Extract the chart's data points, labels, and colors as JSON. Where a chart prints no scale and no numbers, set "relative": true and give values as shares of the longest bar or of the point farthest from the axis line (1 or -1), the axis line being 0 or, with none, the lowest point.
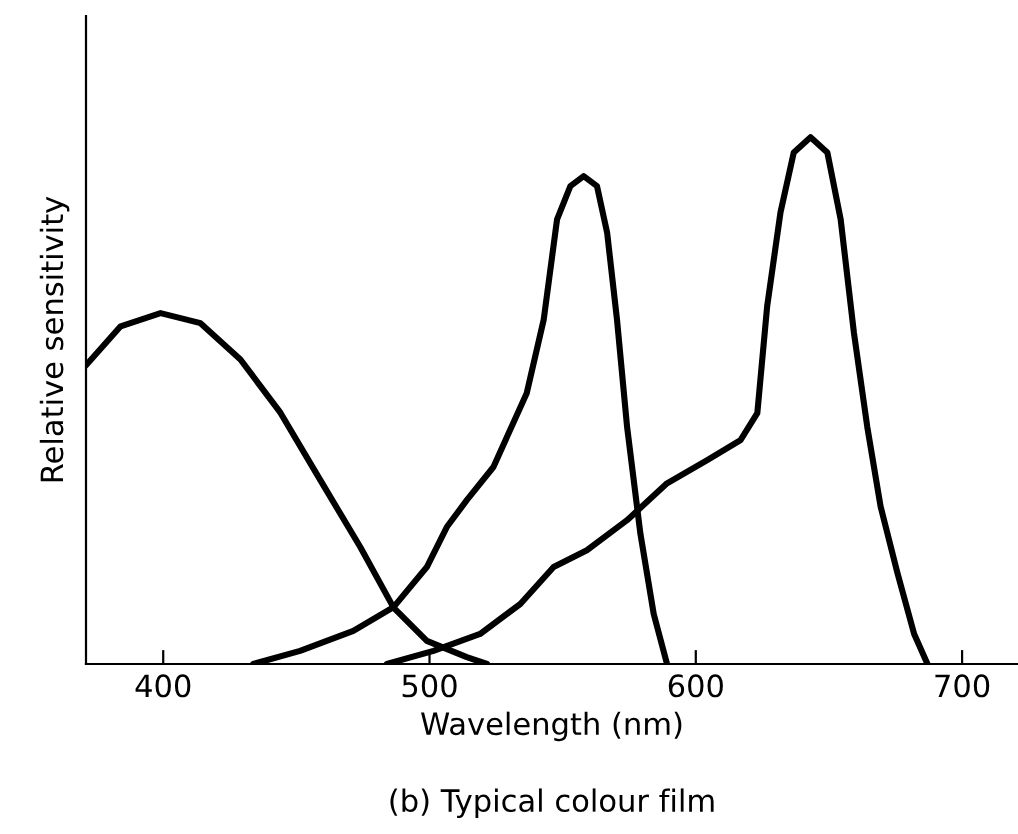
{
  "chart_data": {
    "type": "line",
    "title": "(b) Typical colour film",
    "xlabel": "Wavelength (nm)",
    "ylabel": "Relative sensitivity",
    "relative": true,
    "xlim": [
      371,
      721
    ],
    "xticks": [
      400,
      500,
      600,
      700
    ],
    "grid": false,
    "marker": "none",
    "line_style": "solid",
    "series": [
      {
        "color": "#000000",
        "x": [
          371,
          384,
          399,
          414,
          429,
          444,
          459,
          474,
          486.5,
          499,
          514,
          521.6
        ],
        "values": [
          0.567,
          0.641,
          0.666,
          0.647,
          0.578,
          0.477,
          0.349,
          0.222,
          0.107,
          0.044,
          0.013,
          0
        ]
      },
      {
        "color": "#000000",
        "x": [
          433.8,
          451.4,
          471.4,
          486.5,
          499,
          506.5,
          514,
          524,
          536.5,
          542.9,
          547.9,
          552.9,
          557.9,
          562.9,
          566.7,
          570.4,
          574.2,
          579.2,
          584.2,
          589.2
        ],
        "values": [
          0,
          0.025,
          0.063,
          0.108,
          0.184,
          0.26,
          0.311,
          0.374,
          0.514,
          0.654,
          0.844,
          0.907,
          0.926,
          0.907,
          0.819,
          0.654,
          0.45,
          0.247,
          0.095,
          0
        ]
      },
      {
        "color": "#000000",
        "x": [
          484.0,
          501.5,
          519.0,
          534.1,
          546.6,
          559.1,
          574.2,
          589.2,
          604.3,
          616.8,
          623.1,
          626.8,
          631.8,
          636.8,
          643.1,
          649.4,
          654.4,
          659.4,
          664.4,
          669.4,
          675.7,
          682.0,
          687.0
        ],
        "values": [
          0,
          0.025,
          0.057,
          0.114,
          0.184,
          0.216,
          0.273,
          0.343,
          0.387,
          0.425,
          0.476,
          0.679,
          0.857,
          0.971,
          1.0,
          0.971,
          0.844,
          0.628,
          0.45,
          0.299,
          0.173,
          0.057,
          0
        ]
      }
    ]
  }
}
